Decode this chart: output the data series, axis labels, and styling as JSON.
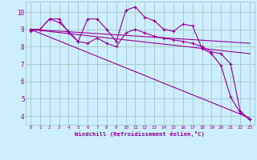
{
  "background_color": "#cceeff",
  "grid_color": "#aacccc",
  "line_color": "#990099",
  "series": {
    "line1": {
      "x": [
        0,
        1,
        2,
        3,
        4,
        5,
        6,
        7,
        8,
        9,
        10,
        11,
        12,
        13,
        14,
        15,
        16,
        17,
        18,
        19,
        20,
        21,
        22,
        23
      ],
      "y": [
        8.9,
        9.0,
        9.6,
        9.6,
        8.8,
        8.3,
        9.6,
        9.6,
        9.0,
        8.3,
        10.1,
        10.3,
        9.7,
        9.5,
        9.0,
        8.9,
        9.3,
        9.2,
        7.9,
        7.6,
        6.9,
        5.1,
        4.2,
        3.8
      ]
    },
    "line2": {
      "x": [
        0,
        1,
        2,
        3,
        4,
        5,
        6,
        7,
        8,
        9,
        10,
        11,
        12,
        13,
        14,
        15,
        16,
        17,
        18,
        19,
        20,
        21,
        22,
        23
      ],
      "y": [
        9.0,
        9.0,
        9.6,
        9.4,
        8.9,
        8.3,
        8.2,
        8.5,
        8.2,
        8.0,
        8.8,
        9.0,
        8.8,
        8.6,
        8.5,
        8.4,
        8.3,
        8.2,
        8.0,
        7.7,
        7.6,
        7.0,
        4.3,
        3.8
      ]
    },
    "trend1": {
      "x": [
        0,
        23
      ],
      "y": [
        9.0,
        8.2
      ]
    },
    "trend2": {
      "x": [
        0,
        23
      ],
      "y": [
        9.0,
        7.6
      ]
    },
    "trend3": {
      "x": [
        0,
        23
      ],
      "y": [
        9.0,
        3.9
      ]
    }
  },
  "xlim": [
    -0.5,
    23.5
  ],
  "ylim": [
    3.5,
    10.6
  ],
  "xtick_values": [
    0,
    1,
    2,
    3,
    4,
    5,
    6,
    7,
    8,
    9,
    10,
    11,
    12,
    13,
    14,
    15,
    16,
    17,
    18,
    19,
    20,
    21,
    22,
    23
  ],
  "ytick_values": [
    4,
    5,
    6,
    7,
    8,
    9,
    10
  ],
  "xlabel": "Windchill (Refroidissement éolien,°C)"
}
